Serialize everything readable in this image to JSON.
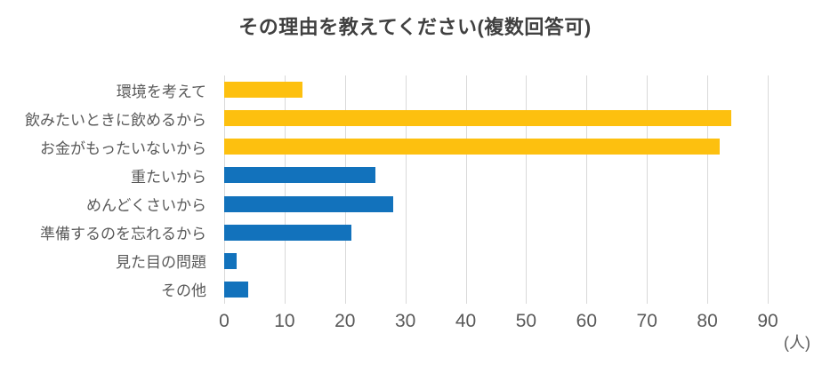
{
  "chart_data": {
    "type": "bar",
    "orientation": "horizontal",
    "title": "その理由を教えてください(複数回答可)",
    "unit_label": "(人)",
    "categories": [
      "環境を考えて",
      "飲みたいときに飲めるから",
      "お金がもったいないから",
      "重たいから",
      "めんどくさいから",
      "準備するのを忘れるから",
      "見た目の問題",
      "その他"
    ],
    "values": [
      13,
      84,
      82,
      25,
      28,
      21,
      2,
      4
    ],
    "bar_colors": [
      "#FDC00F",
      "#FDC00F",
      "#FDC00F",
      "#1272BC",
      "#1272BC",
      "#1272BC",
      "#1272BC",
      "#1272BC"
    ],
    "xlim": [
      0,
      90
    ],
    "x_ticks": [
      0,
      10,
      20,
      30,
      40,
      50,
      60,
      70,
      80,
      90
    ],
    "grid": "vertical",
    "legend": "none",
    "colors": {
      "accent_yellow": "#FDC00F",
      "accent_blue": "#1272BC",
      "gridline": "#D9D9D9",
      "title_text": "#404040",
      "axis_text": "#595959",
      "background": "#FFFFFF"
    }
  }
}
